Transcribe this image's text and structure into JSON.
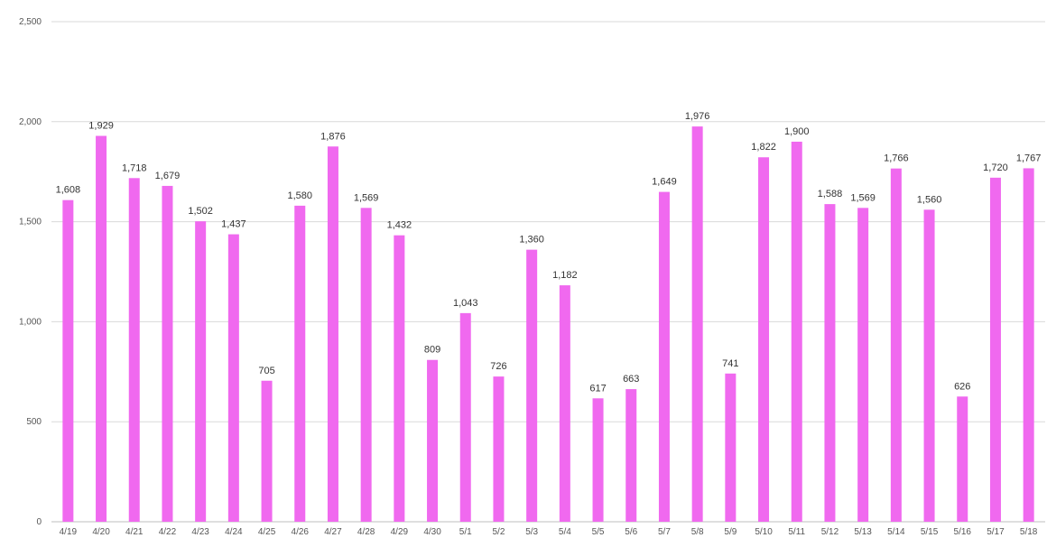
{
  "chart_data": {
    "type": "bar",
    "title": "",
    "xlabel": "",
    "ylabel": "",
    "ylim": [
      0,
      2500
    ],
    "yticks": [
      0,
      500,
      1000,
      1500,
      2000,
      2500
    ],
    "ytick_labels": [
      "0",
      "500",
      "1,000",
      "1,500",
      "2,000",
      "2,500"
    ],
    "grid": "horizontal",
    "legend": "none",
    "bar_color": "#f069ef",
    "categories": [
      "4/19",
      "4/20",
      "4/21",
      "4/22",
      "4/23",
      "4/24",
      "4/25",
      "4/26",
      "4/27",
      "4/28",
      "4/29",
      "4/30",
      "5/1",
      "5/2",
      "5/3",
      "5/4",
      "5/5",
      "5/6",
      "5/7",
      "5/8",
      "5/9",
      "5/10",
      "5/11",
      "5/12",
      "5/13",
      "5/14",
      "5/15",
      "5/16",
      "5/17",
      "5/18"
    ],
    "values": [
      1608,
      1929,
      1718,
      1679,
      1502,
      1437,
      705,
      1580,
      1876,
      1569,
      1432,
      809,
      1043,
      726,
      1360,
      1182,
      617,
      663,
      1649,
      1976,
      741,
      1822,
      1900,
      1588,
      1569,
      1766,
      1560,
      626,
      1720,
      1767
    ],
    "value_labels": [
      "1,608",
      "1,929",
      "1,718",
      "1,679",
      "1,502",
      "1,437",
      "705",
      "1,580",
      "1,876",
      "1,569",
      "1,432",
      "809",
      "1,043",
      "726",
      "1,360",
      "1,182",
      "617",
      "663",
      "1,649",
      "1,976",
      "741",
      "1,822",
      "1,900",
      "1,588",
      "1,569",
      "1,766",
      "1,560",
      "626",
      "1,720",
      "1,767"
    ]
  }
}
